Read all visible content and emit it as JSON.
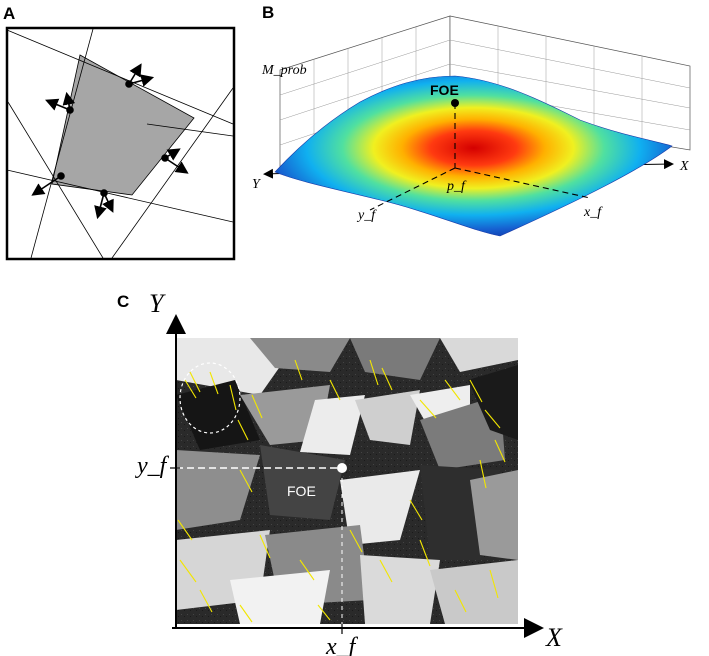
{
  "panels": {
    "a": {
      "label": "A"
    },
    "b": {
      "label": "B",
      "z_label": "M_prob",
      "x_label": "X",
      "y_label": "Y",
      "foe_label": "FOE",
      "pf_label": "p_f",
      "xf_label": "x_f",
      "yf_label": "y_f"
    },
    "c": {
      "label": "C",
      "x_label": "X",
      "y_label": "Y",
      "foe_label": "FOE",
      "xf_label": "x_f",
      "yf_label": "y_f"
    }
  },
  "colors": {
    "polygon_fill": "#a6a6a6",
    "flow_vectors": "#f2e600",
    "foe_marker": "#ffffff"
  }
}
